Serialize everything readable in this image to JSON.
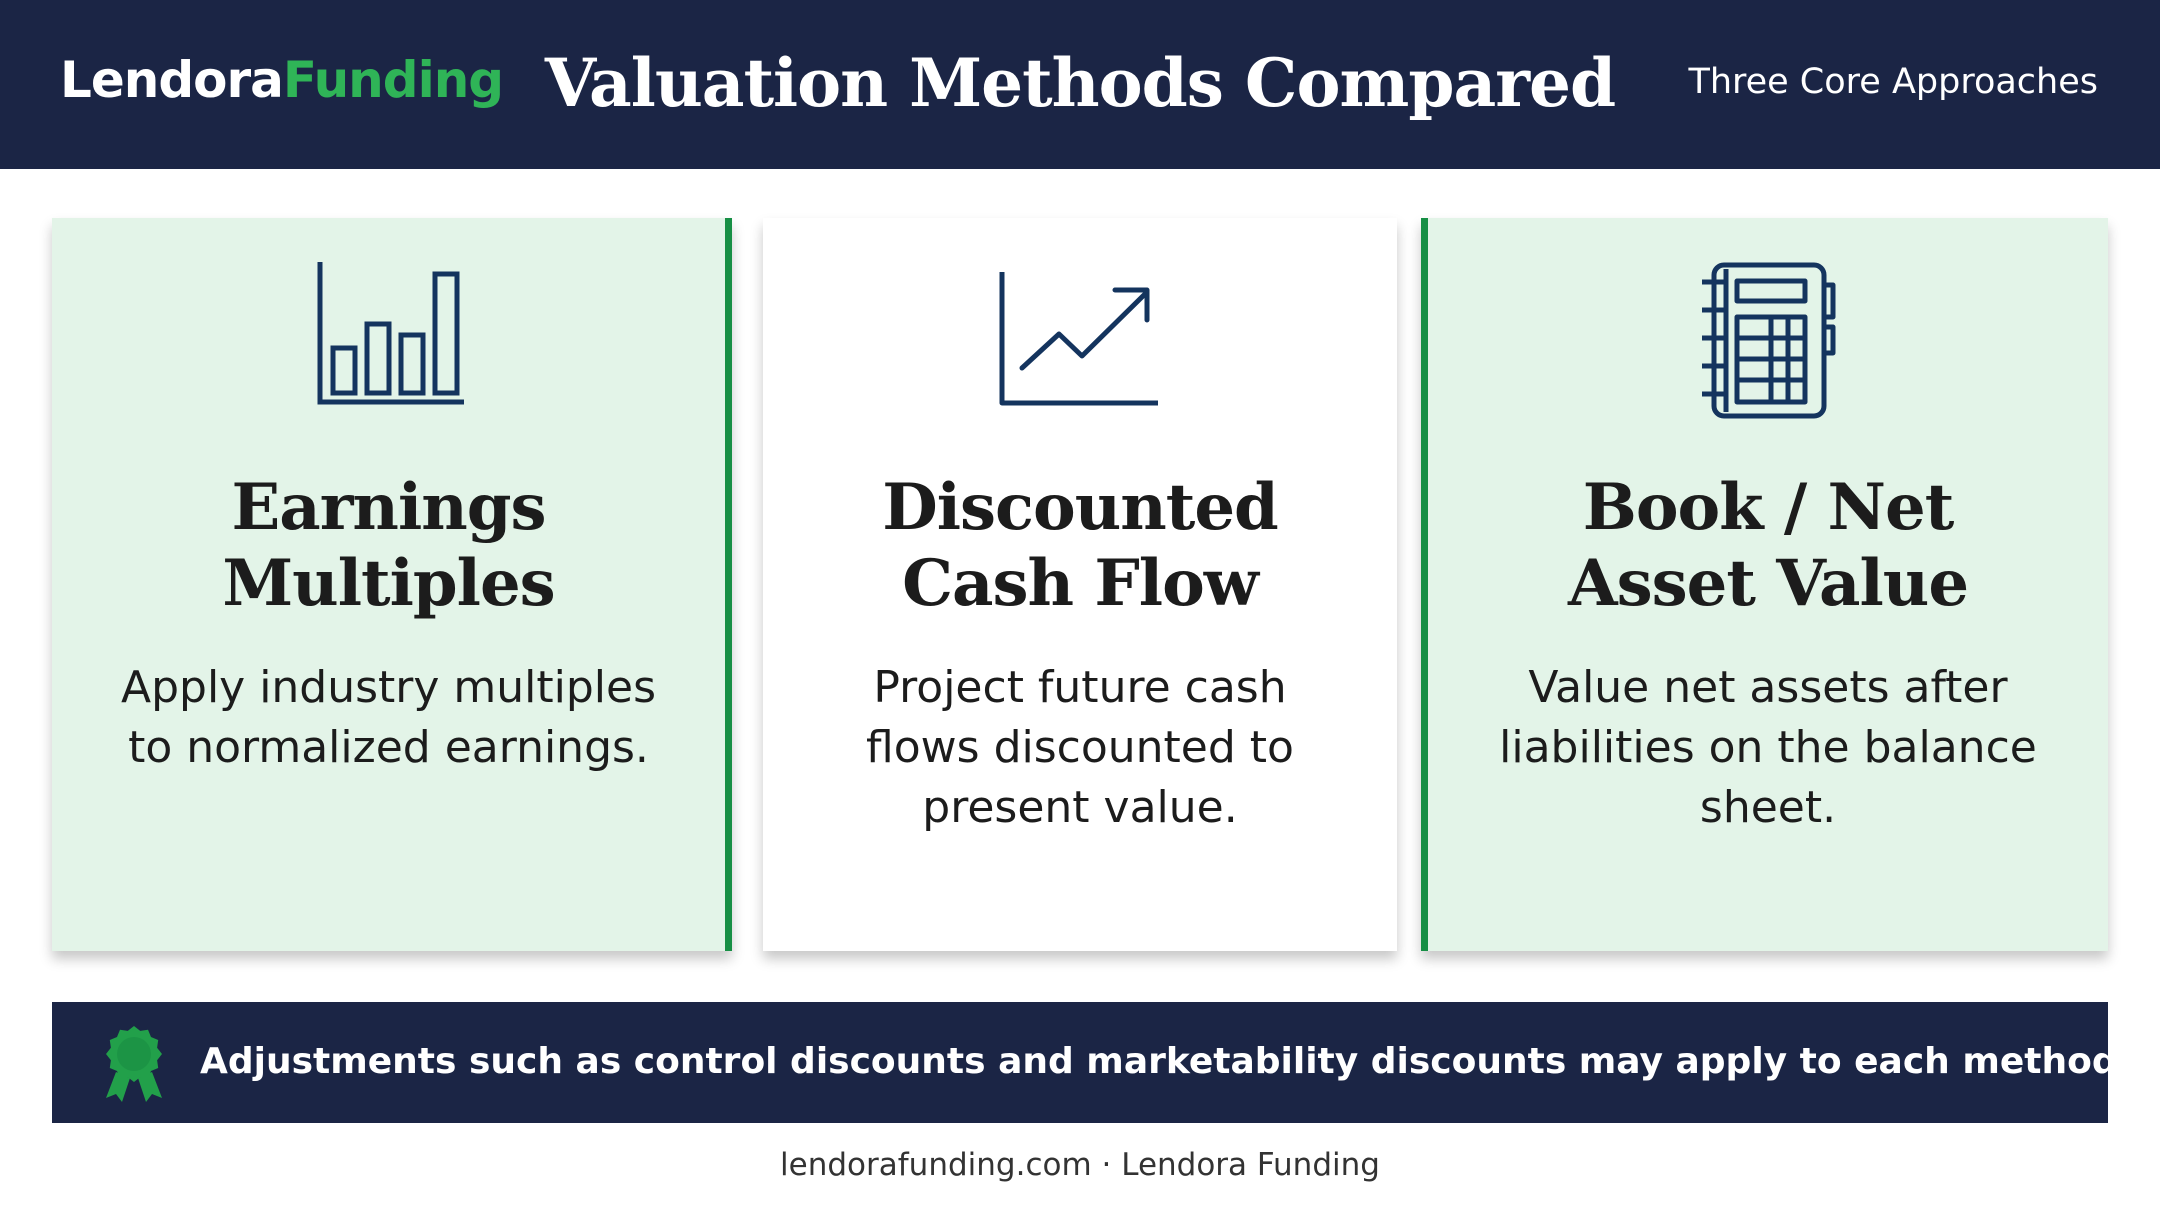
{
  "header": {
    "logo_part1": "Lendora",
    "logo_part2": "Funding",
    "title": "Valuation Methods Compared",
    "subtitle": "Three Core Approaches"
  },
  "cards": [
    {
      "icon": "bar-chart-icon",
      "title_line1": "Earnings",
      "title_line2": "Multiples",
      "description": "Apply industry multiples to normalized earnings."
    },
    {
      "icon": "line-chart-trend-up-icon",
      "title_line1": "Discounted",
      "title_line2": "Cash Flow",
      "description": "Project future cash flows discounted to present value."
    },
    {
      "icon": "ledger-book-icon",
      "title_line1": "Book / Net",
      "title_line2": "Asset Value",
      "description": "Value net assets after liabilities on the balance sheet."
    }
  ],
  "notice": {
    "icon": "award-ribbon-icon",
    "text": "Adjustments such as control discounts and marketability discounts may apply to each method."
  },
  "footer": {
    "text": "lendorafunding.com · Lendora Funding"
  },
  "colors": {
    "navy": "#1b2545",
    "green_accent": "#178f45",
    "logo_green": "#2fb457",
    "card_green_bg": "#e3f4e8",
    "icon_navy": "#14345e"
  }
}
